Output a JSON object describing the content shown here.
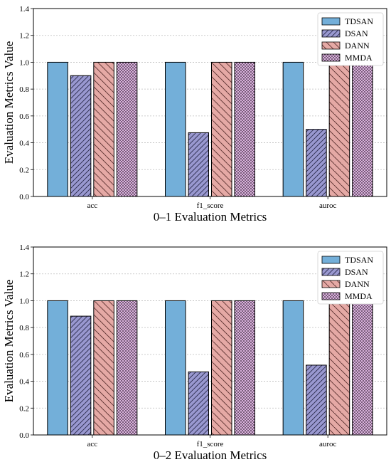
{
  "chart_data": [
    {
      "type": "bar",
      "categories": [
        "acc",
        "f1_score",
        "auroc"
      ],
      "xlabel": "0–1 Evaluation Metrics",
      "ylabel": "Evaluation Metrics Value",
      "ylim": [
        0,
        1.4
      ],
      "yticks": [
        "0.0",
        "0.2",
        "0.4",
        "0.6",
        "0.8",
        "1.0",
        "1.2",
        "1.4"
      ],
      "grid": "horizontal dashed",
      "legend_position": "top-right",
      "series": [
        {
          "name": "TDSAN",
          "values": [
            1.0,
            1.0,
            1.0
          ],
          "color": "#73afd9",
          "pattern": "solid"
        },
        {
          "name": "DSAN",
          "values": [
            0.9,
            0.475,
            0.5
          ],
          "color": "#9998d0",
          "pattern": "diagonal-up"
        },
        {
          "name": "DANN",
          "values": [
            1.0,
            1.0,
            1.0
          ],
          "color": "#e5a9a5",
          "pattern": "diagonal-down"
        },
        {
          "name": "MMDA",
          "values": [
            1.0,
            1.0,
            1.0
          ],
          "color": "#d9b1dc",
          "pattern": "dots"
        }
      ]
    },
    {
      "type": "bar",
      "categories": [
        "acc",
        "f1_score",
        "auroc"
      ],
      "xlabel": "0–2 Evaluation Metrics",
      "ylabel": "Evaluation Metrics Value",
      "ylim": [
        0,
        1.4
      ],
      "yticks": [
        "0.0",
        "0.2",
        "0.4",
        "0.6",
        "0.8",
        "1.0",
        "1.2",
        "1.4"
      ],
      "grid": "horizontal dashed",
      "legend_position": "top-right",
      "series": [
        {
          "name": "TDSAN",
          "values": [
            1.0,
            1.0,
            1.0
          ],
          "color": "#73afd9",
          "pattern": "solid"
        },
        {
          "name": "DSAN",
          "values": [
            0.885,
            0.47,
            0.52
          ],
          "color": "#9998d0",
          "pattern": "diagonal-up"
        },
        {
          "name": "DANN",
          "values": [
            1.0,
            1.0,
            1.0
          ],
          "color": "#e5a9a5",
          "pattern": "diagonal-down"
        },
        {
          "name": "MMDA",
          "values": [
            1.0,
            1.0,
            0.995
          ],
          "color": "#d9b1dc",
          "pattern": "dots"
        }
      ]
    }
  ]
}
